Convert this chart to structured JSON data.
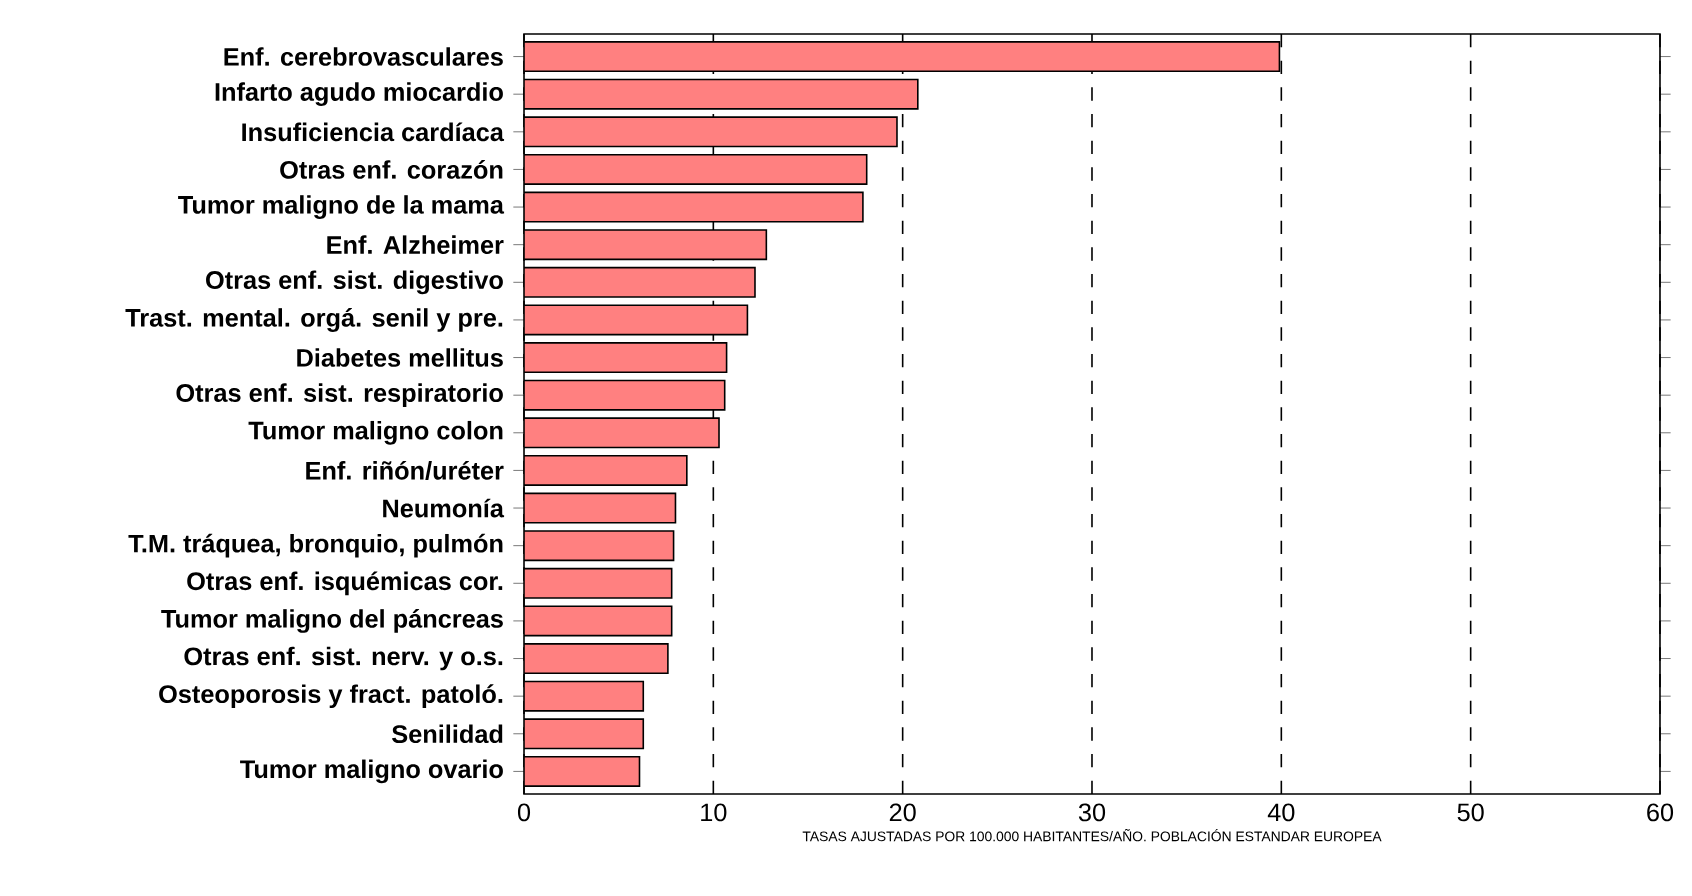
{
  "chart_data": {
    "type": "bar",
    "orientation": "horizontal",
    "xlabel": "TASAS AJUSTADAS  POR 100.000 HABITANTES/AÑO. POBLACIÓN ESTANDAR EUROPEA",
    "categories": [
      "Enf. cerebrovasculares",
      "Infarto agudo miocardio",
      "Insuficiencia cardíaca",
      "Otras enf. corazón",
      "Tumor maligno de la mama",
      "Enf. Alzheimer",
      "Otras enf. sist. digestivo",
      "Trast. mental. orgá. senil y pre.",
      "Diabetes mellitus",
      "Otras enf. sist. respiratorio",
      "Tumor maligno colon",
      "Enf. riñón/uréter",
      "Neumonía",
      "T.M. tráquea, bronquio,  pulmón",
      "Otras enf. isquémicas cor.",
      "Tumor maligno del páncreas",
      "Otras enf. sist. nerv. y o.s.",
      "Osteoporosis y fract. patoló.",
      "Senilidad",
      "Tumor maligno ovario"
    ],
    "values": [
      39.9,
      20.8,
      19.7,
      18.1,
      17.9,
      12.8,
      12.2,
      11.8,
      10.7,
      10.6,
      10.3,
      8.6,
      8.0,
      7.9,
      7.8,
      7.8,
      7.6,
      6.3,
      6.3,
      6.1
    ],
    "color": "#ff8080",
    "xlim": [
      0,
      60
    ],
    "xticks": [
      0,
      10,
      20,
      30,
      40,
      50,
      60
    ],
    "grid": "x"
  }
}
